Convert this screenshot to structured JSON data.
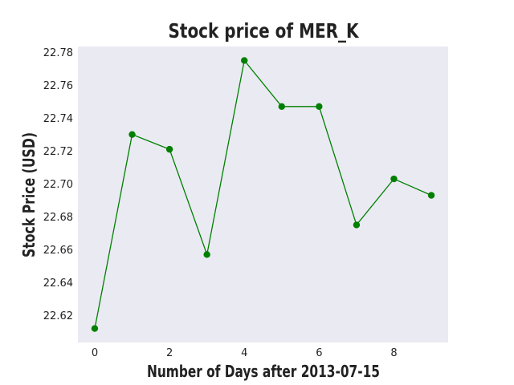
{
  "chart_data": {
    "type": "line",
    "title": "Stock price of MER_K",
    "xlabel": "Number of Days after 2013-07-15",
    "ylabel": "Stock Price (USD)",
    "x": [
      0,
      1,
      2,
      3,
      4,
      5,
      6,
      7,
      8,
      9
    ],
    "series": [
      {
        "values": [
          22.612,
          22.73,
          22.721,
          22.657,
          22.775,
          22.747,
          22.747,
          22.675,
          22.703,
          22.693
        ],
        "color": "#008000"
      }
    ],
    "xticks": [
      "0",
      "2",
      "4",
      "6",
      "8"
    ],
    "yticks": [
      "22.62",
      "22.64",
      "22.66",
      "22.68",
      "22.70",
      "22.72",
      "22.74",
      "22.76",
      "22.78"
    ],
    "xlim": [
      -0.45,
      9.45
    ],
    "ylim": [
      22.6035,
      22.7835
    ],
    "grid": false,
    "background": "#EAEAF2"
  }
}
